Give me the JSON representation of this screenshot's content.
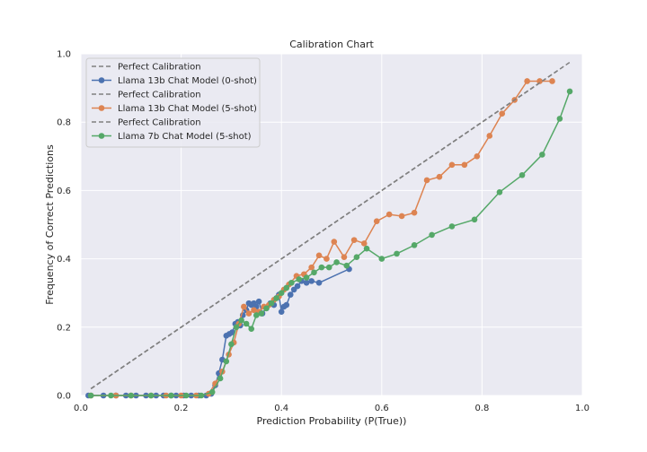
{
  "chart_data": {
    "type": "line",
    "title": "Calibration Chart",
    "xlabel": "Prediction Probability (P(True))",
    "ylabel": "Frequency of Correct Predictions",
    "xlim": [
      0.0,
      1.0
    ],
    "ylim": [
      0.0,
      1.0
    ],
    "xticks": [
      "0.0",
      "0.2",
      "0.4",
      "0.6",
      "0.8",
      "1.0"
    ],
    "yticks": [
      "0.0",
      "0.2",
      "0.4",
      "0.6",
      "0.8",
      "1.0"
    ],
    "grid": true,
    "legend_position": "upper-left",
    "background": "#eaeaf2",
    "series": [
      {
        "name": "Perfect Calibration",
        "kind": "dashed-line",
        "color": "#808080",
        "x": [
          0.02,
          0.92
        ],
        "y": [
          0.02,
          0.92
        ]
      },
      {
        "name": "Llama 13b Chat Model (0-shot)",
        "kind": "line-marker",
        "color": "#4c72b0",
        "x": [
          0.015,
          0.045,
          0.07,
          0.09,
          0.11,
          0.13,
          0.15,
          0.165,
          0.18,
          0.19,
          0.205,
          0.22,
          0.235,
          0.25,
          0.26,
          0.268,
          0.275,
          0.282,
          0.29,
          0.296,
          0.302,
          0.308,
          0.313,
          0.318,
          0.323,
          0.33,
          0.335,
          0.34,
          0.345,
          0.35,
          0.355,
          0.362,
          0.37,
          0.378,
          0.385,
          0.39,
          0.395,
          0.4,
          0.405,
          0.41,
          0.418,
          0.425,
          0.432,
          0.44,
          0.45,
          0.46,
          0.475,
          0.535
        ],
        "y": [
          0.0,
          0.0,
          0.0,
          0.0,
          0.0,
          0.0,
          0.0,
          0.0,
          0.0,
          0.0,
          0.0,
          0.0,
          0.0,
          0.0,
          0.005,
          0.03,
          0.065,
          0.105,
          0.175,
          0.18,
          0.185,
          0.21,
          0.215,
          0.205,
          0.235,
          0.25,
          0.27,
          0.265,
          0.27,
          0.26,
          0.275,
          0.24,
          0.255,
          0.27,
          0.265,
          0.285,
          0.295,
          0.245,
          0.26,
          0.265,
          0.295,
          0.31,
          0.32,
          0.335,
          0.33,
          0.335,
          0.33,
          0.37
        ]
      },
      {
        "name": "Perfect Calibration",
        "kind": "dashed-line",
        "color": "#808080",
        "x": [
          0.02,
          0.95
        ],
        "y": [
          0.02,
          0.95
        ]
      },
      {
        "name": "Llama 13b Chat Model (5-shot)",
        "kind": "line-marker",
        "color": "#dd8452",
        "x": [
          0.02,
          0.07,
          0.1,
          0.14,
          0.17,
          0.2,
          0.23,
          0.255,
          0.268,
          0.282,
          0.295,
          0.305,
          0.315,
          0.325,
          0.335,
          0.345,
          0.355,
          0.365,
          0.375,
          0.385,
          0.395,
          0.405,
          0.415,
          0.43,
          0.445,
          0.46,
          0.475,
          0.49,
          0.505,
          0.525,
          0.545,
          0.565,
          0.59,
          0.615,
          0.64,
          0.665,
          0.69,
          0.715,
          0.74,
          0.765,
          0.79,
          0.815,
          0.84,
          0.865,
          0.89,
          0.915,
          0.94
        ],
        "y": [
          0.0,
          0.0,
          0.0,
          0.0,
          0.0,
          0.0,
          0.0,
          0.005,
          0.035,
          0.07,
          0.12,
          0.155,
          0.21,
          0.26,
          0.24,
          0.25,
          0.245,
          0.26,
          0.265,
          0.28,
          0.29,
          0.31,
          0.325,
          0.35,
          0.355,
          0.375,
          0.41,
          0.4,
          0.45,
          0.405,
          0.455,
          0.445,
          0.51,
          0.53,
          0.525,
          0.535,
          0.63,
          0.64,
          0.675,
          0.675,
          0.7,
          0.76,
          0.825,
          0.865,
          0.92,
          0.92,
          0.92
        ]
      },
      {
        "name": "Perfect Calibration",
        "kind": "dashed-line",
        "color": "#808080",
        "x": [
          0.02,
          0.975
        ],
        "y": [
          0.02,
          0.975
        ]
      },
      {
        "name": "Llama 7b Chat Model (5-shot)",
        "kind": "line-marker",
        "color": "#55a868",
        "x": [
          0.02,
          0.06,
          0.1,
          0.14,
          0.18,
          0.21,
          0.24,
          0.262,
          0.278,
          0.29,
          0.3,
          0.31,
          0.32,
          0.33,
          0.34,
          0.35,
          0.36,
          0.37,
          0.38,
          0.39,
          0.4,
          0.41,
          0.42,
          0.435,
          0.45,
          0.465,
          0.48,
          0.495,
          0.51,
          0.53,
          0.55,
          0.57,
          0.6,
          0.63,
          0.665,
          0.7,
          0.74,
          0.785,
          0.835,
          0.88,
          0.92,
          0.955,
          0.975
        ],
        "y": [
          0.0,
          0.0,
          0.0,
          0.0,
          0.0,
          0.0,
          0.0,
          0.01,
          0.05,
          0.1,
          0.15,
          0.2,
          0.22,
          0.21,
          0.195,
          0.235,
          0.24,
          0.255,
          0.27,
          0.285,
          0.3,
          0.315,
          0.33,
          0.34,
          0.345,
          0.36,
          0.375,
          0.375,
          0.39,
          0.38,
          0.405,
          0.43,
          0.4,
          0.415,
          0.44,
          0.47,
          0.495,
          0.515,
          0.595,
          0.645,
          0.705,
          0.81,
          0.89
        ]
      }
    ]
  }
}
